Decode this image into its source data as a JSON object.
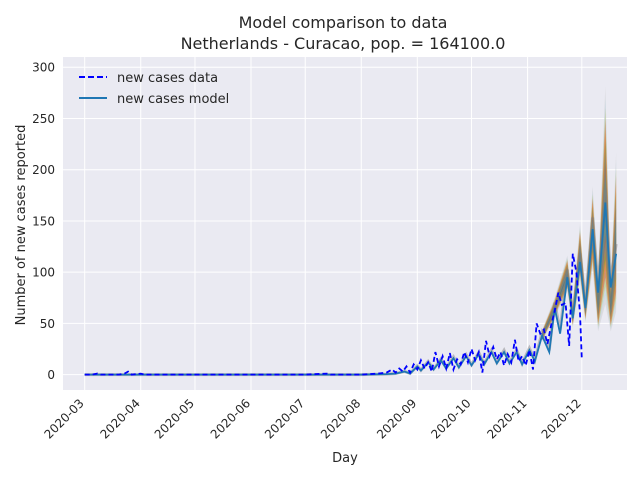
{
  "chart_data": {
    "type": "line",
    "title": "Model comparison to data",
    "subtitle": "Netherlands - Curacao, pop. = 164100.0",
    "xlabel": "Day",
    "ylabel": "Number of new cases reported",
    "x_ticks": [
      "2020-03",
      "2020-04",
      "2020-05",
      "2020-06",
      "2020-07",
      "2020-08",
      "2020-09",
      "2020-10",
      "2020-11",
      "2020-12"
    ],
    "y_ticks": [
      0,
      50,
      100,
      150,
      200,
      250,
      300
    ],
    "xlim": [
      "2020-02-18",
      "2020-12-26"
    ],
    "ylim": [
      -15,
      310
    ],
    "grid": true,
    "legend": "top-left",
    "background_color": "#eaeaf2",
    "series": [
      {
        "name": "new cases data",
        "style": "dashed",
        "color": "#0000ff",
        "points": [
          [
            "2020-03-01",
            0
          ],
          [
            "2020-03-05",
            0
          ],
          [
            "2020-03-08",
            1
          ],
          [
            "2020-03-10",
            0
          ],
          [
            "2020-03-20",
            0
          ],
          [
            "2020-03-23",
            1
          ],
          [
            "2020-03-25",
            3
          ],
          [
            "2020-03-27",
            0
          ],
          [
            "2020-04-01",
            1
          ],
          [
            "2020-04-03",
            0
          ],
          [
            "2020-05-01",
            0
          ],
          [
            "2020-06-01",
            0
          ],
          [
            "2020-07-01",
            0
          ],
          [
            "2020-07-13",
            1
          ],
          [
            "2020-07-15",
            0
          ],
          [
            "2020-08-01",
            0
          ],
          [
            "2020-08-10",
            1
          ],
          [
            "2020-08-15",
            2
          ],
          [
            "2020-08-18",
            5
          ],
          [
            "2020-08-20",
            2
          ],
          [
            "2020-08-22",
            6
          ],
          [
            "2020-08-24",
            3
          ],
          [
            "2020-08-26",
            8
          ],
          [
            "2020-08-28",
            2
          ],
          [
            "2020-08-30",
            10
          ],
          [
            "2020-09-01",
            5
          ],
          [
            "2020-09-03",
            14
          ],
          [
            "2020-09-05",
            6
          ],
          [
            "2020-09-07",
            12
          ],
          [
            "2020-09-09",
            3
          ],
          [
            "2020-09-11",
            22
          ],
          [
            "2020-09-13",
            8
          ],
          [
            "2020-09-15",
            18
          ],
          [
            "2020-09-17",
            6
          ],
          [
            "2020-09-19",
            21
          ],
          [
            "2020-09-21",
            5
          ],
          [
            "2020-09-23",
            15
          ],
          [
            "2020-09-25",
            10
          ],
          [
            "2020-09-27",
            22
          ],
          [
            "2020-09-29",
            12
          ],
          [
            "2020-10-01",
            25
          ],
          [
            "2020-10-03",
            14
          ],
          [
            "2020-10-05",
            22
          ],
          [
            "2020-10-07",
            2
          ],
          [
            "2020-10-09",
            33
          ],
          [
            "2020-10-11",
            18
          ],
          [
            "2020-10-13",
            27
          ],
          [
            "2020-10-15",
            15
          ],
          [
            "2020-10-17",
            22
          ],
          [
            "2020-10-19",
            9
          ],
          [
            "2020-10-21",
            20
          ],
          [
            "2020-10-23",
            12
          ],
          [
            "2020-10-25",
            34
          ],
          [
            "2020-10-27",
            13
          ],
          [
            "2020-10-29",
            18
          ],
          [
            "2020-10-31",
            9
          ],
          [
            "2020-11-02",
            24
          ],
          [
            "2020-11-04",
            5
          ],
          [
            "2020-11-06",
            50
          ],
          [
            "2020-11-08",
            40
          ],
          [
            "2020-11-10",
            44
          ],
          [
            "2020-11-12",
            30
          ],
          [
            "2020-11-14",
            48
          ],
          [
            "2020-11-16",
            62
          ],
          [
            "2020-11-18",
            80
          ],
          [
            "2020-11-20",
            68
          ],
          [
            "2020-11-22",
            70
          ],
          [
            "2020-11-24",
            28
          ],
          [
            "2020-11-26",
            118
          ],
          [
            "2020-11-28",
            100
          ],
          [
            "2020-11-30",
            60
          ],
          [
            "2020-12-01",
            15
          ]
        ]
      },
      {
        "name": "new cases model",
        "style": "solid",
        "color": "#1f77b4",
        "points": [
          [
            "2020-03-01",
            0
          ],
          [
            "2020-04-01",
            0
          ],
          [
            "2020-05-01",
            0
          ],
          [
            "2020-06-01",
            0
          ],
          [
            "2020-07-01",
            0
          ],
          [
            "2020-08-01",
            0
          ],
          [
            "2020-08-15",
            0.5
          ],
          [
            "2020-08-20",
            1
          ],
          [
            "2020-08-25",
            3
          ],
          [
            "2020-08-28",
            1
          ],
          [
            "2020-09-01",
            8
          ],
          [
            "2020-09-03",
            4
          ],
          [
            "2020-09-07",
            12
          ],
          [
            "2020-09-10",
            5
          ],
          [
            "2020-09-14",
            14
          ],
          [
            "2020-09-17",
            6
          ],
          [
            "2020-09-21",
            16
          ],
          [
            "2020-09-24",
            7
          ],
          [
            "2020-09-28",
            18
          ],
          [
            "2020-10-01",
            9
          ],
          [
            "2020-10-05",
            20
          ],
          [
            "2020-10-08",
            10
          ],
          [
            "2020-10-12",
            22
          ],
          [
            "2020-10-15",
            11
          ],
          [
            "2020-10-19",
            22
          ],
          [
            "2020-10-22",
            11
          ],
          [
            "2020-10-26",
            22
          ],
          [
            "2020-10-29",
            10
          ],
          [
            "2020-11-02",
            24
          ],
          [
            "2020-11-05",
            13
          ],
          [
            "2020-11-09",
            38
          ],
          [
            "2020-11-13",
            22
          ],
          [
            "2020-11-16",
            65
          ],
          [
            "2020-11-19",
            40
          ],
          [
            "2020-11-23",
            95
          ],
          [
            "2020-11-26",
            55
          ],
          [
            "2020-11-30",
            110
          ],
          [
            "2020-12-03",
            65
          ],
          [
            "2020-12-07",
            142
          ],
          [
            "2020-12-10",
            80
          ],
          [
            "2020-12-14",
            168
          ],
          [
            "2020-12-17",
            85
          ],
          [
            "2020-12-20",
            118
          ]
        ]
      }
    ],
    "model_ensemble": {
      "description_colors": [
        "#c0c0c0",
        "#add8e6",
        "#bcbd22",
        "#d62728",
        "#ff7f0e",
        "#2ca02c",
        "#9467bd",
        "#8c564b",
        "#17becf",
        "#7f7f7f",
        "#555555"
      ],
      "upper": [
        [
          "2020-11-09",
          44
        ],
        [
          "2020-11-16",
          76
        ],
        [
          "2020-11-23",
          118
        ],
        [
          "2020-11-26",
          70
        ],
        [
          "2020-11-30",
          150
        ],
        [
          "2020-12-03",
          80
        ],
        [
          "2020-12-07",
          188
        ],
        [
          "2020-12-10",
          100
        ],
        [
          "2020-12-14",
          292
        ],
        [
          "2020-12-17",
          95
        ],
        [
          "2020-12-20",
          225
        ]
      ],
      "lower": [
        [
          "2020-11-09",
          32
        ],
        [
          "2020-11-16",
          55
        ],
        [
          "2020-11-23",
          80
        ],
        [
          "2020-11-26",
          45
        ],
        [
          "2020-11-30",
          90
        ],
        [
          "2020-12-03",
          50
        ],
        [
          "2020-12-07",
          100
        ],
        [
          "2020-12-10",
          40
        ],
        [
          "2020-12-14",
          60
        ],
        [
          "2020-12-17",
          40
        ],
        [
          "2020-12-20",
          55
        ]
      ]
    }
  }
}
